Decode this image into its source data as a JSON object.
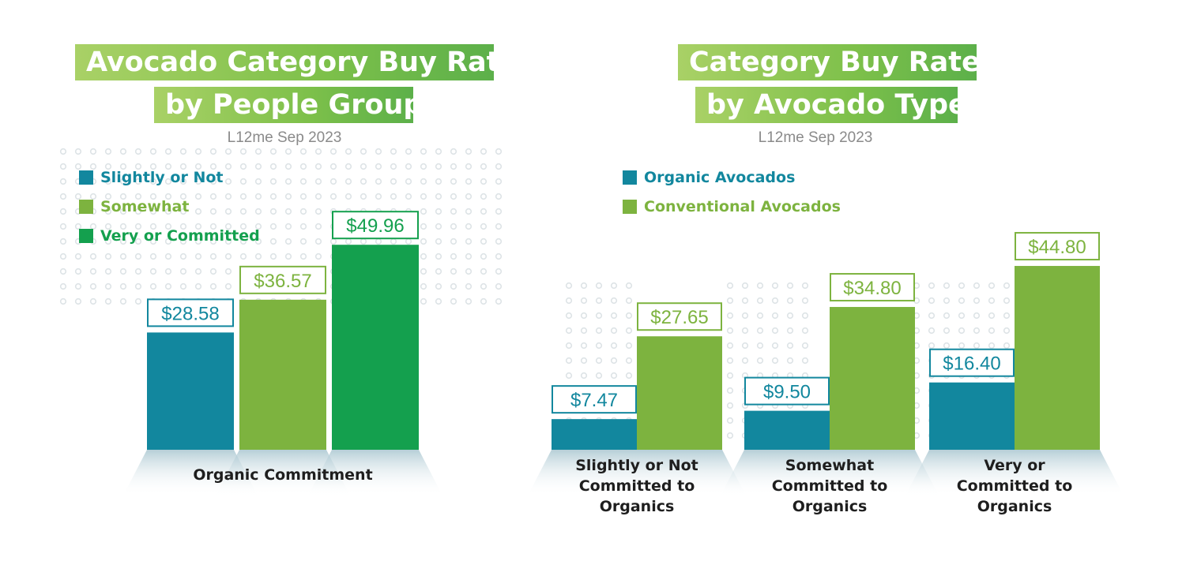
{
  "colors": {
    "teal": "#12879e",
    "lime": "#7db33f",
    "green": "#14a04e",
    "title_bg": "#7dc04a",
    "dots": "#dde3e6"
  },
  "left_chart": {
    "title_line1": "Avocado Category Buy Rate",
    "title_line2": "by People Group",
    "subtitle": "L12me Sep 2023",
    "legend": [
      {
        "label": "Slightly or Not",
        "color": "#12879e"
      },
      {
        "label": "Somewhat",
        "color": "#7db33f"
      },
      {
        "label": "Very or Committed",
        "color": "#14a04e"
      }
    ],
    "category_label": "Organic Commitment"
  },
  "right_chart": {
    "title_line1": "Category Buy Rates",
    "title_line2": "by Avocado Type",
    "subtitle": "L12me Sep 2023",
    "legend": [
      {
        "label": "Organic Avocados",
        "color": "#12879e"
      },
      {
        "label": "Conventional Avocados",
        "color": "#7db33f"
      }
    ]
  },
  "chart_data": [
    {
      "type": "bar",
      "title": "Avocado Category Buy Rate by People Group",
      "subtitle": "L12me Sep 2023",
      "categories": [
        "Organic Commitment"
      ],
      "series": [
        {
          "name": "Slightly or Not",
          "values": [
            28.58
          ],
          "labels": [
            "$28.58"
          ]
        },
        {
          "name": "Somewhat",
          "values": [
            36.57
          ],
          "labels": [
            "$36.57"
          ]
        },
        {
          "name": "Very or Committed",
          "values": [
            49.96
          ],
          "labels": [
            "$49.96"
          ]
        }
      ],
      "ylim": [
        0,
        50
      ],
      "legend": "top-left",
      "grid": false
    },
    {
      "type": "bar",
      "title": "Category Buy Rates by Avocado Type",
      "subtitle": "L12me Sep 2023",
      "categories": [
        "Slightly or Not Committed to Organics",
        "Somewhat Committed to Organics",
        "Very or Committed to Organics"
      ],
      "category_lines": [
        [
          "Slightly or Not",
          "Committed to",
          "Organics"
        ],
        [
          "Somewhat",
          "Committed to",
          "Organics"
        ],
        [
          "Very or",
          "Committed to",
          "Organics"
        ]
      ],
      "series": [
        {
          "name": "Organic Avocados",
          "values": [
            7.47,
            9.5,
            16.4
          ],
          "labels": [
            "$7.47",
            "$9.50",
            "$16.40"
          ]
        },
        {
          "name": "Conventional Avocados",
          "values": [
            27.65,
            34.8,
            44.8
          ],
          "labels": [
            "$27.65",
            "$34.80",
            "$44.80"
          ]
        }
      ],
      "ylim": [
        0,
        50
      ],
      "legend": "top-left",
      "grid": false
    }
  ]
}
